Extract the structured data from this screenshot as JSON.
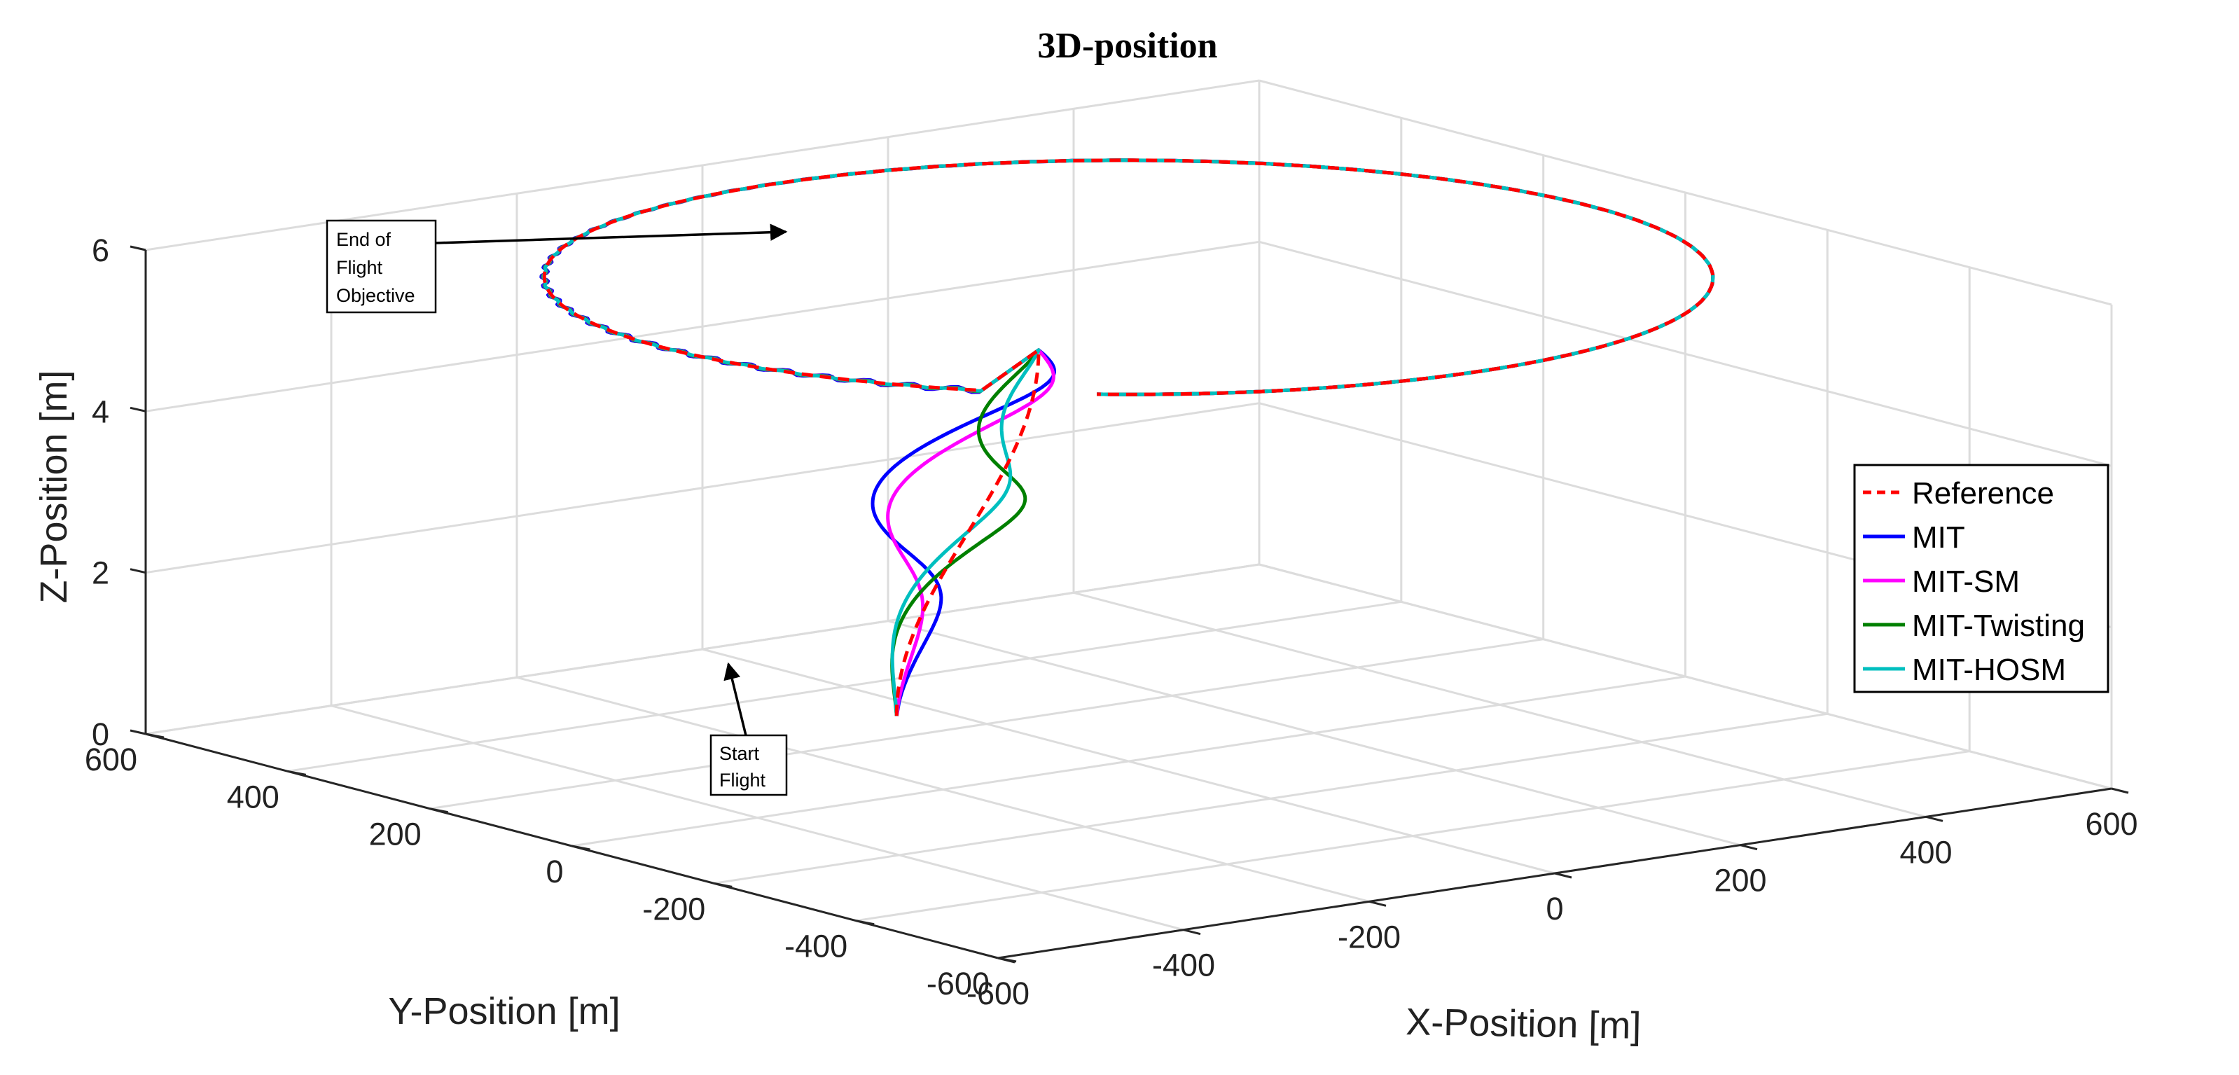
{
  "chart_data": {
    "type": "line3d",
    "title": "3D-position",
    "xlabel": "X-Position [m]",
    "ylabel": "Y-Position [m]",
    "zlabel": "Z-Position [m]",
    "xlim": [
      -600,
      600
    ],
    "ylim": [
      -600,
      600
    ],
    "zlim": [
      0,
      6
    ],
    "xticks": [
      "-600",
      "-400",
      "-200",
      "0",
      "200",
      "400",
      "600"
    ],
    "yticks": [
      "-600",
      "-400",
      "-200",
      "0",
      "200",
      "400",
      "600"
    ],
    "zticks": [
      "0",
      "2",
      "4",
      "6"
    ],
    "grid": true,
    "legend_position": "east",
    "series": [
      {
        "name": "Reference",
        "color": "#ff0000",
        "style": "dashed"
      },
      {
        "name": "MIT",
        "color": "#0000ff",
        "style": "solid"
      },
      {
        "name": "MIT-SM",
        "color": "#ff00ff",
        "style": "solid"
      },
      {
        "name": "MIT-Twisting",
        "color": "#008000",
        "style": "solid"
      },
      {
        "name": "MIT-HOSM",
        "color": "#00bfbf",
        "style": "solid"
      }
    ],
    "trajectory": {
      "orbit_center": [
        0,
        0
      ],
      "orbit_radius": 500,
      "orbit_altitude": 6,
      "start": {
        "x": -250,
        "y": 0,
        "z": 1
      },
      "takeoff_end": {
        "x": -250,
        "y": -200,
        "z": 6
      }
    },
    "annotations": [
      {
        "name": "end",
        "text": [
          "End of",
          "Flight",
          "Objective"
        ]
      },
      {
        "name": "start",
        "text": [
          "Start",
          "Flight"
        ]
      }
    ]
  }
}
